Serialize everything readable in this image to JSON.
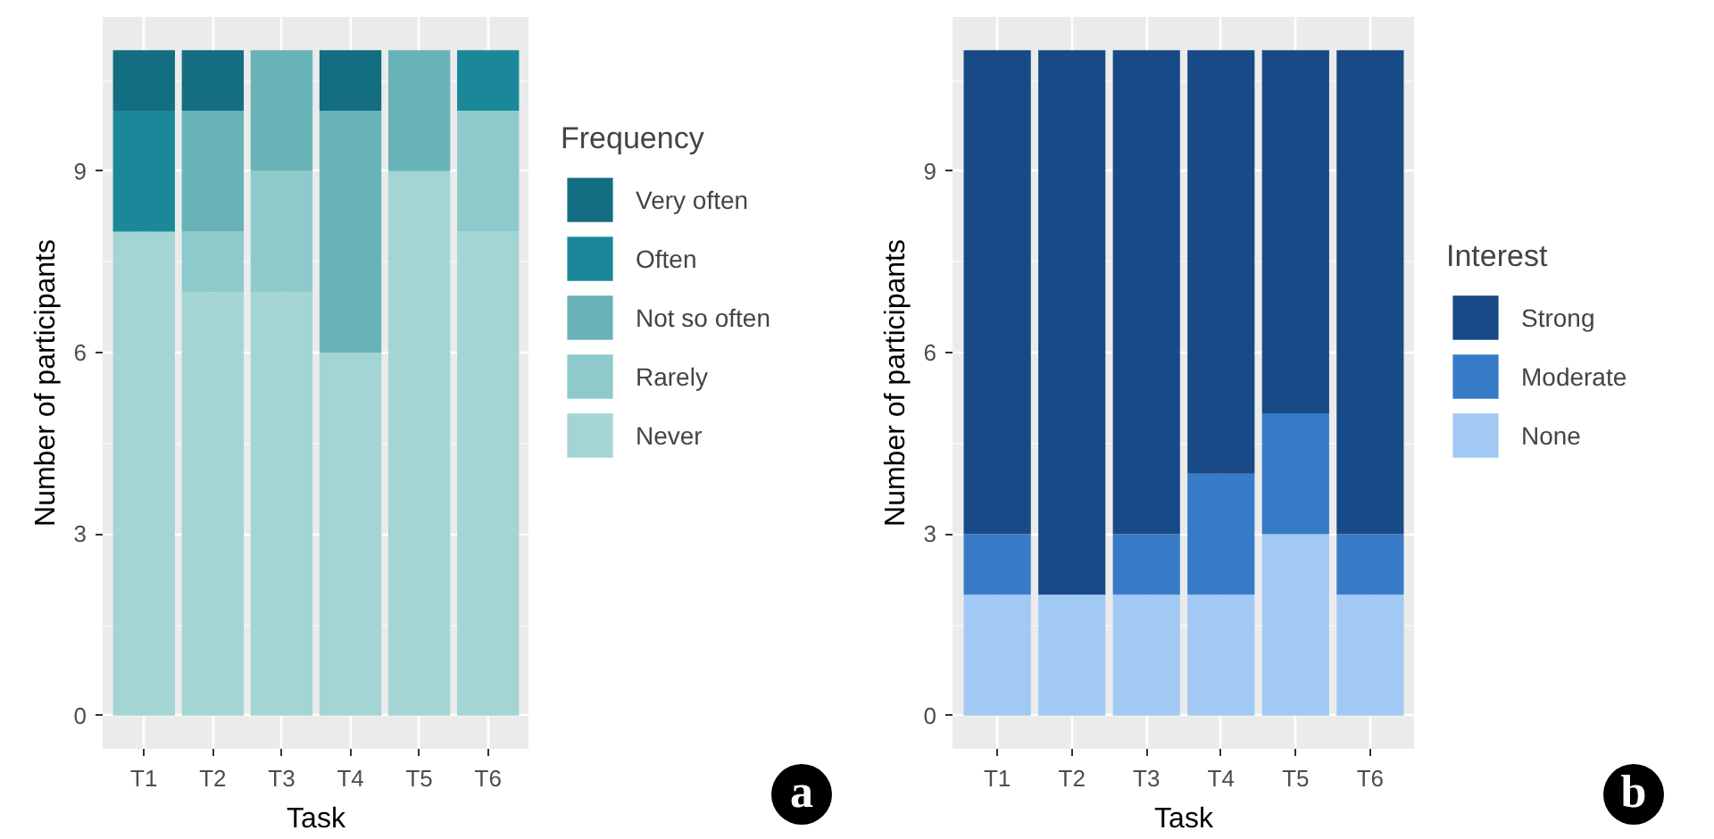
{
  "chart_data": [
    {
      "type": "bar",
      "stacked": true,
      "categories": [
        "T1",
        "T2",
        "T3",
        "T4",
        "T5",
        "T6"
      ],
      "xlabel": "Task",
      "ylabel": "Number of participants",
      "legend_title": "Frequency",
      "ylim": [
        -0.55,
        11.55
      ],
      "yticks": [
        0,
        3,
        6,
        9
      ],
      "grid": true,
      "legend": "right",
      "annotations": [
        "a"
      ],
      "series": [
        {
          "name": "Never",
          "color": "#a3d5d4",
          "values": [
            8,
            7,
            7,
            6,
            9,
            8
          ]
        },
        {
          "name": "Rarely",
          "color": "#8ecacb",
          "values": [
            0,
            1,
            2,
            0,
            0,
            2
          ]
        },
        {
          "name": "Not so often",
          "color": "#68b3b8",
          "values": [
            0,
            2,
            2,
            4,
            2,
            0
          ]
        },
        {
          "name": "Often",
          "color": "#1b8899",
          "values": [
            2,
            0,
            0,
            0,
            0,
            1
          ]
        },
        {
          "name": "Very often",
          "color": "#146e82",
          "values": [
            1,
            1,
            0,
            1,
            0,
            0
          ]
        }
      ]
    },
    {
      "type": "bar",
      "stacked": true,
      "categories": [
        "T1",
        "T2",
        "T3",
        "T4",
        "T5",
        "T6"
      ],
      "xlabel": "Task",
      "ylabel": "Number of participants",
      "legend_title": "Interest",
      "ylim": [
        -0.55,
        11.55
      ],
      "yticks": [
        0,
        3,
        6,
        9
      ],
      "grid": true,
      "legend": "right",
      "annotations": [
        "b"
      ],
      "series": [
        {
          "name": "None",
          "color": "#a1c9f4",
          "values": [
            2,
            2,
            2,
            2,
            3,
            2
          ]
        },
        {
          "name": "Moderate",
          "color": "#377bc8",
          "values": [
            1,
            0,
            1,
            2,
            2,
            1
          ]
        },
        {
          "name": "Strong",
          "color": "#174a86",
          "values": [
            8,
            9,
            8,
            7,
            6,
            8
          ]
        }
      ]
    }
  ]
}
